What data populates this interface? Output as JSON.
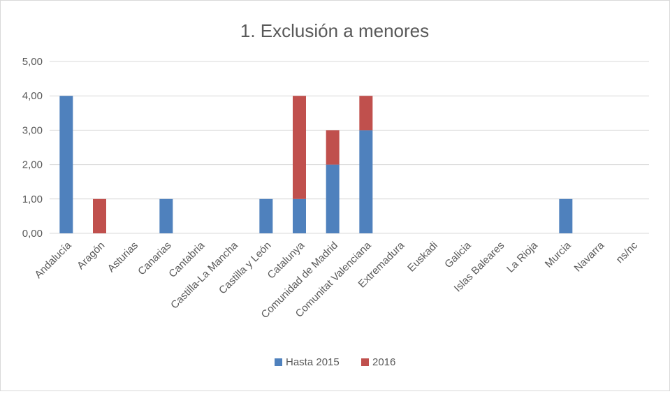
{
  "chart_data": {
    "type": "bar",
    "stacked": true,
    "title": "1. Exclusión a menores",
    "xlabel": "",
    "ylabel": "",
    "ylim": [
      0,
      5
    ],
    "y_ticks": [
      "0,00",
      "1,00",
      "2,00",
      "3,00",
      "4,00",
      "5,00"
    ],
    "grid": true,
    "legend_position": "bottom",
    "categories": [
      "Andalucía",
      "Aragón",
      "Asturias",
      "Canarias",
      "Cantabria",
      "Castilla-La Mancha",
      "Castilla y León",
      "Catalunya",
      "Comunidad de Madrid",
      "Comunitat Valenciana",
      "Extremadura",
      "Euskadi",
      "Galicia",
      "Islas Baleares",
      "La Rioja",
      "Murcia",
      "Navarra",
      "ns/nc"
    ],
    "series": [
      {
        "name": "Hasta 2015",
        "color": "#4f81bd",
        "values": [
          4,
          0,
          0,
          1,
          0,
          0,
          1,
          1,
          2,
          3,
          0,
          0,
          0,
          0,
          0,
          1,
          0,
          0
        ]
      },
      {
        "name": "2016",
        "color": "#c0504d",
        "values": [
          0,
          1,
          0,
          0,
          0,
          0,
          0,
          3,
          1,
          1,
          0,
          0,
          0,
          0,
          0,
          0,
          0,
          0
        ]
      }
    ]
  }
}
